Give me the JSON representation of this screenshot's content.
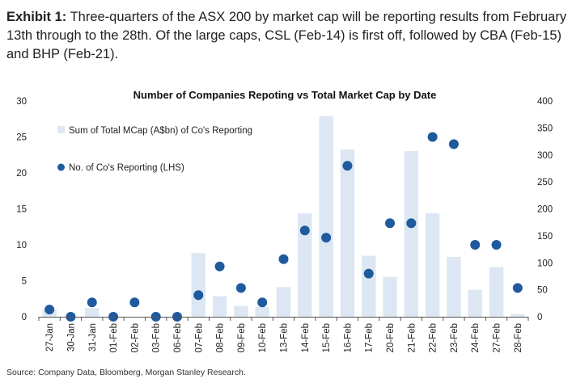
{
  "exhibit": {
    "label": "Exhibit 1:",
    "text": "Three-quarters of the ASX 200 by market cap will be reporting results from February 13th through to the 28th. Of the large caps, CSL (Feb-14) is first off, followed by CBA (Feb-15) and BHP (Feb-21)."
  },
  "source": "Source: Company Data, Bloomberg, Morgan Stanley Research.",
  "colors": {
    "bar": "#dce7f3",
    "dot": "#1f5a9e"
  },
  "chart_data": {
    "type": "bar+scatter",
    "title": "Number of Companies Repoting vs Total Market Cap by Date",
    "categories": [
      "27-Jan",
      "30-Jan",
      "31-Jan",
      "01-Feb",
      "02-Feb",
      "03-Feb",
      "06-Feb",
      "07-Feb",
      "08-Feb",
      "09-Feb",
      "10-Feb",
      "13-Feb",
      "14-Feb",
      "15-Feb",
      "16-Feb",
      "17-Feb",
      "20-Feb",
      "21-Feb",
      "22-Feb",
      "23-Feb",
      "24-Feb",
      "27-Feb",
      "28-Feb"
    ],
    "series": [
      {
        "name": "Sum of Total MCap (A$bn) of Co's Reporting",
        "type": "bar",
        "axis": "right",
        "values": [
          14,
          0,
          16,
          0,
          0,
          0,
          0,
          118,
          38,
          20,
          18,
          55,
          192,
          372,
          310,
          113,
          74,
          307,
          192,
          111,
          50,
          92,
          5
        ]
      },
      {
        "name": "No. of Co's Reporting (LHS)",
        "type": "scatter",
        "axis": "left",
        "values": [
          1,
          0,
          2,
          0,
          2,
          0,
          0,
          3,
          7,
          4,
          2,
          8,
          12,
          11,
          21,
          6,
          13,
          13,
          25,
          24,
          10,
          10,
          4
        ]
      }
    ],
    "ylim_left": [
      0,
      30
    ],
    "yticks_left": [
      "0",
      "5",
      "10",
      "15",
      "20",
      "25",
      "30"
    ],
    "ylim_right": [
      0,
      400
    ],
    "yticks_right": [
      "0",
      "50",
      "100",
      "150",
      "200",
      "250",
      "300",
      "350",
      "400"
    ],
    "legend_position": "top-left"
  }
}
